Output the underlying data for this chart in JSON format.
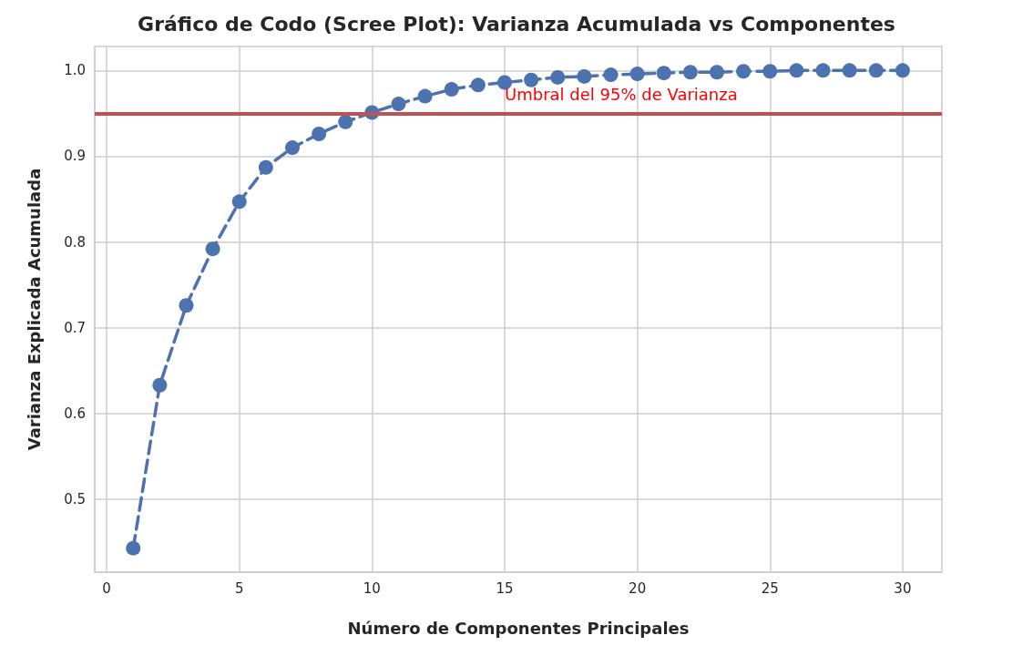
{
  "chart_data": {
    "type": "line",
    "title": "Gráfico de Codo (Scree Plot): Varianza Acumulada vs Componentes",
    "xlabel": "Número de Componentes Principales",
    "ylabel": "Varianza Explicada Acumulada",
    "x": [
      1,
      2,
      3,
      4,
      5,
      6,
      7,
      8,
      9,
      10,
      11,
      12,
      13,
      14,
      15,
      16,
      17,
      18,
      19,
      20,
      21,
      22,
      23,
      24,
      25,
      26,
      27,
      28,
      29,
      30
    ],
    "series": [
      {
        "color": "#4c72b0",
        "values": [
          0.443,
          0.633,
          0.726,
          0.792,
          0.847,
          0.887,
          0.91,
          0.926,
          0.94,
          0.951,
          0.961,
          0.97,
          0.978,
          0.983,
          0.986,
          0.989,
          0.992,
          0.993,
          0.995,
          0.996,
          0.997,
          0.998,
          0.998,
          0.999,
          0.999,
          1.0,
          1.0,
          1.0,
          1.0,
          1.0
        ]
      }
    ],
    "xlim": [
      -0.45,
      31.48
    ],
    "xticks": [
      0,
      5,
      10,
      15,
      20,
      25,
      30
    ],
    "ylim": [
      0.415,
      1.028
    ],
    "yticks": [
      0.5,
      0.6,
      0.7,
      0.8,
      0.9,
      {
        "value": 1,
        "label": "1.0"
      }
    ],
    "ref_lines": [
      {
        "axis": "y",
        "value": 0.95,
        "color": "#c44e52",
        "line_style": "solid"
      }
    ],
    "annotations": [
      "Umbral del 95% de Varianza"
    ],
    "grid": true,
    "marker": "circle",
    "line_style": "dashed"
  }
}
